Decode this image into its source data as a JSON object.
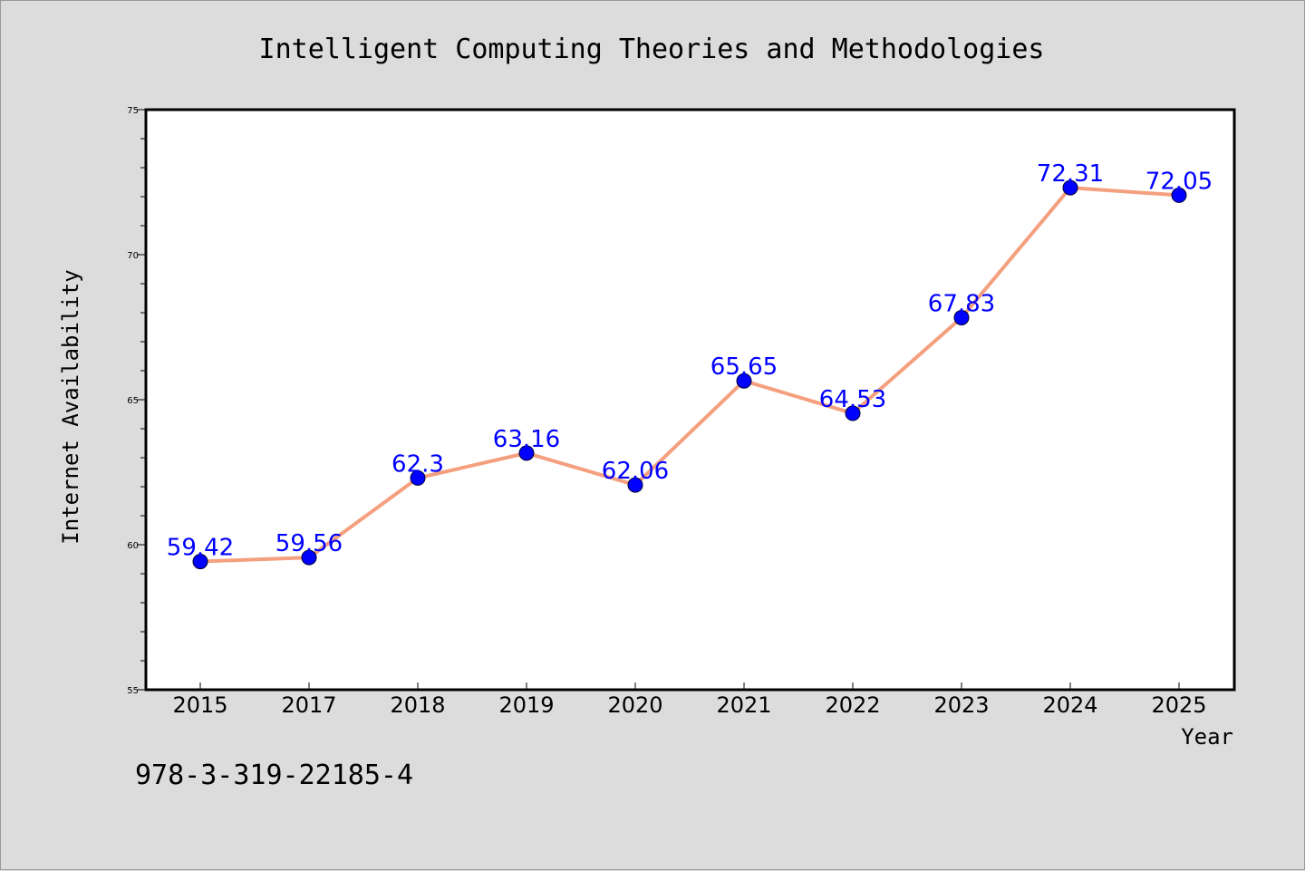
{
  "chart_data": {
    "type": "line",
    "title": "Intelligent Computing Theories and Methodologies",
    "xlabel": "Year",
    "ylabel": "Internet Availability",
    "categories": [
      "2015",
      "2017",
      "2018",
      "2019",
      "2020",
      "2021",
      "2022",
      "2023",
      "2024",
      "2025"
    ],
    "values": [
      59.42,
      59.56,
      62.3,
      63.16,
      62.06,
      65.65,
      64.53,
      67.83,
      72.31,
      72.05
    ],
    "data_labels": [
      "59.42",
      "59.56",
      "62.3",
      "63.16",
      "62.06",
      "65.65",
      "64.53",
      "67.83",
      "72.31",
      "72.05"
    ],
    "ylim": [
      55,
      75
    ],
    "yticks": [
      "55",
      "60",
      "65",
      "70",
      "75"
    ],
    "grid": false,
    "legend": "none",
    "line_color": "#f4a07e",
    "marker_color": "#0000ff",
    "label_color": "#0000ff",
    "background_color": "#dcdcdc",
    "plot_background_color": "#ffffff"
  },
  "footnote": "978-3-319-22185-4"
}
